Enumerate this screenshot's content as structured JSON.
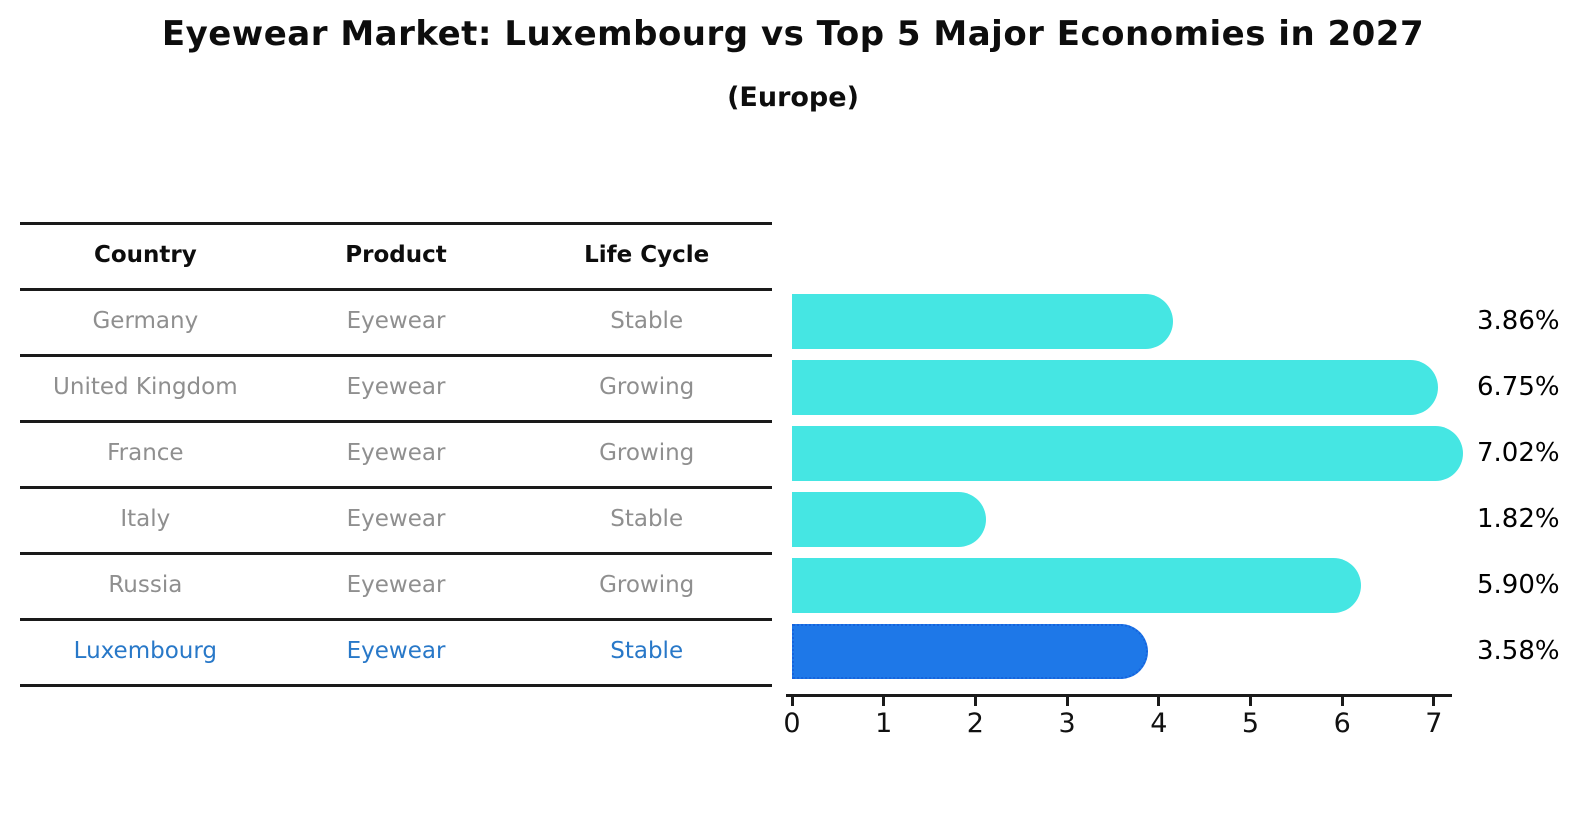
{
  "title": "Eyewear Market: Luxembourg vs Top 5 Major Economies in 2027",
  "subtitle": "(Europe)",
  "table": {
    "headers": [
      "Country",
      "Product",
      "Life Cycle"
    ],
    "rows": [
      {
        "country": "Germany",
        "product": "Eyewear",
        "life_cycle": "Stable",
        "highlight": false
      },
      {
        "country": "United Kingdom",
        "product": "Eyewear",
        "life_cycle": "Growing",
        "highlight": false
      },
      {
        "country": "France",
        "product": "Eyewear",
        "life_cycle": "Growing",
        "highlight": false
      },
      {
        "country": "Italy",
        "product": "Eyewear",
        "life_cycle": "Stable",
        "highlight": false
      },
      {
        "country": "Russia",
        "product": "Eyewear",
        "life_cycle": "Growing",
        "highlight": false
      },
      {
        "country": "Luxembourg",
        "product": "Eyewear",
        "life_cycle": "Stable",
        "highlight": true
      }
    ]
  },
  "chart_data": {
    "type": "bar",
    "orientation": "horizontal",
    "title": "Eyewear Market: Luxembourg vs Top 5 Major Economies in 2027 (Europe)",
    "categories": [
      "Germany",
      "United Kingdom",
      "France",
      "Italy",
      "Russia",
      "Luxembourg"
    ],
    "values": [
      3.86,
      6.75,
      7.02,
      1.82,
      5.9,
      3.58
    ],
    "value_labels": [
      "3.86%",
      "6.75%",
      "7.02%",
      "1.82%",
      "5.90%",
      "3.58%"
    ],
    "highlight_index": 5,
    "xlabel": "",
    "ylabel": "",
    "xticks": [
      0,
      1,
      2,
      3,
      4,
      5,
      6,
      7
    ],
    "xlim": [
      0,
      7.2
    ],
    "grid": false,
    "legend": null
  },
  "colors": {
    "bar": "#45E6E3",
    "highlight_bar": "#1E78E8",
    "highlight_bar_border": "#1563DD",
    "row_text": "#8f8f8f",
    "highlight_text": "#2878C8",
    "header_text": "#0d0d0d",
    "axis": "#1a1a1a",
    "value_label": "#000000"
  }
}
